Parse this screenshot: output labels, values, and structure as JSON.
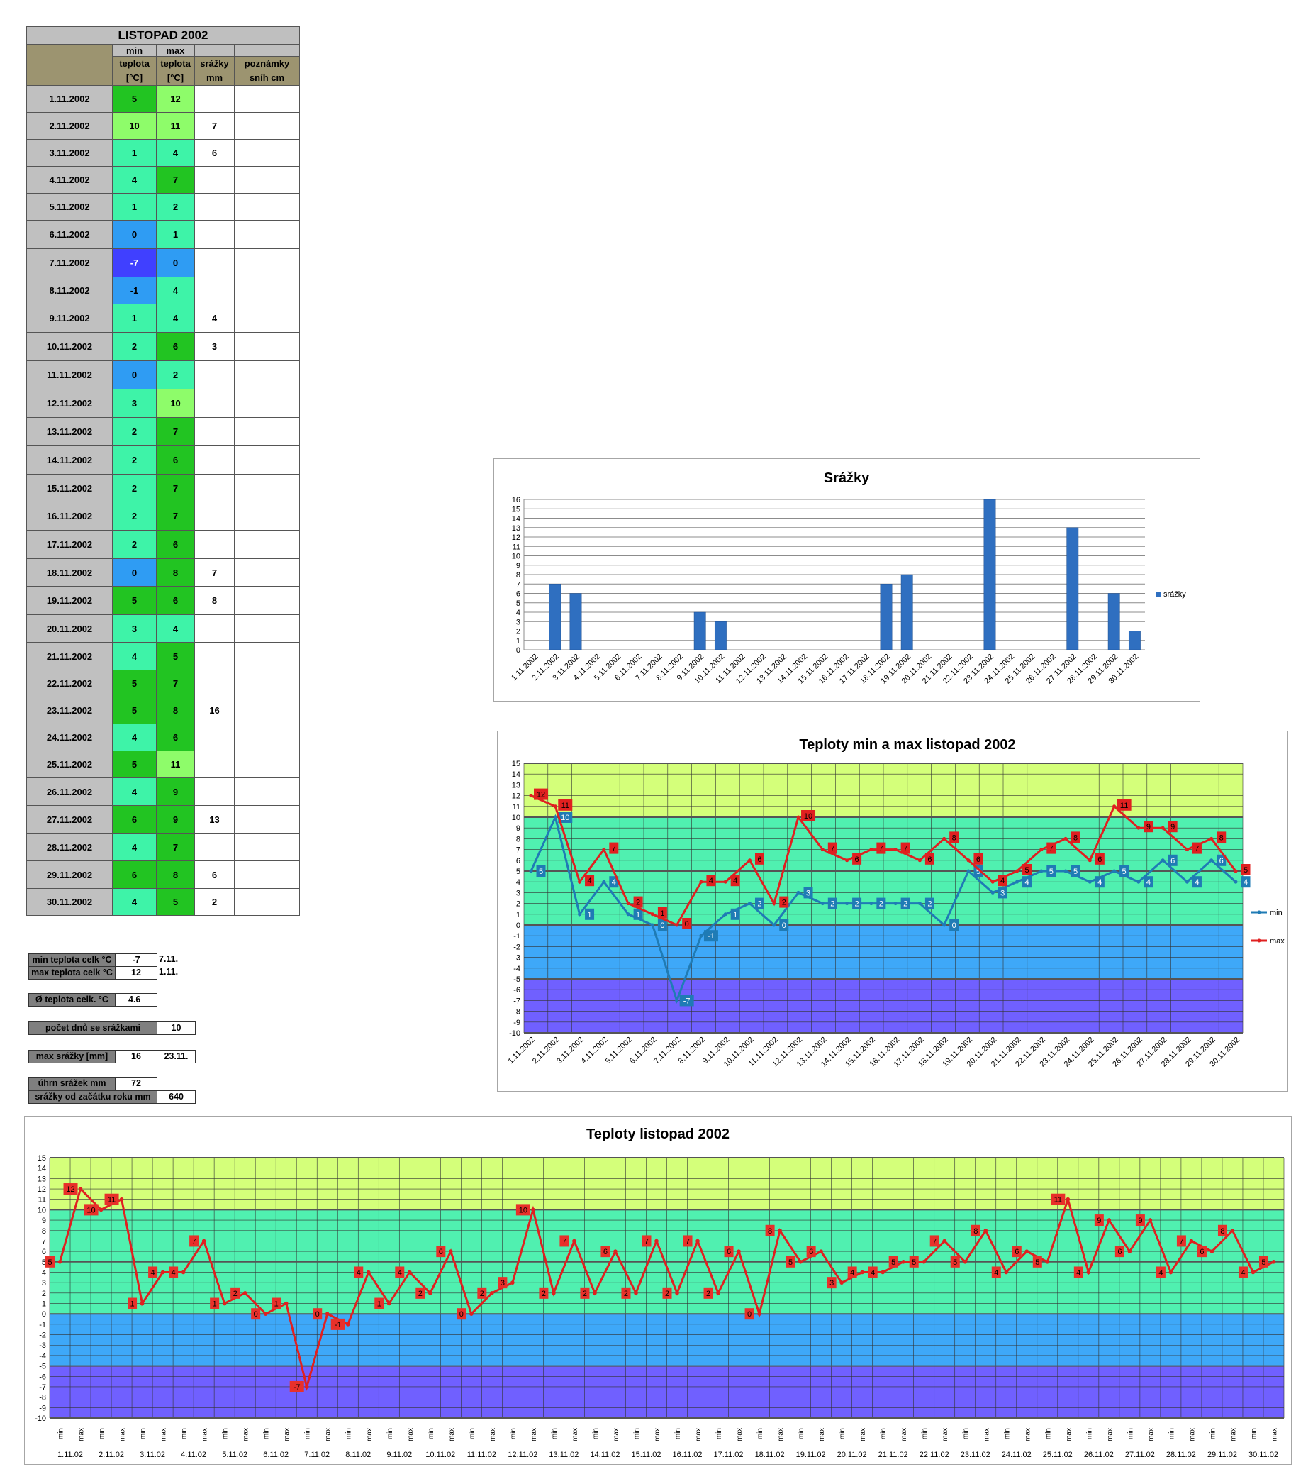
{
  "table": {
    "title": "LISTOPAD 2002",
    "headers": {
      "min_top": "min",
      "max_top": "max",
      "min_l1": "teplota",
      "min_l2": "[°C]",
      "max_l1": "teplota",
      "max_l2": "[°C]",
      "rain_l1": "srážky",
      "rain_l2": "mm",
      "notes_l1": "poznámky",
      "notes_l2": "sníh cm"
    },
    "rows": [
      {
        "date": "1.11.2002",
        "min": "5",
        "max": "12",
        "rain": "",
        "note": ""
      },
      {
        "date": "2.11.2002",
        "min": "10",
        "max": "11",
        "rain": "7",
        "note": ""
      },
      {
        "date": "3.11.2002",
        "min": "1",
        "max": "4",
        "rain": "6",
        "note": ""
      },
      {
        "date": "4.11.2002",
        "min": "4",
        "max": "7",
        "rain": "",
        "note": ""
      },
      {
        "date": "5.11.2002",
        "min": "1",
        "max": "2",
        "rain": "",
        "note": ""
      },
      {
        "date": "6.11.2002",
        "min": "0",
        "max": "1",
        "rain": "",
        "note": ""
      },
      {
        "date": "7.11.2002",
        "min": "-7",
        "max": "0",
        "rain": "",
        "note": ""
      },
      {
        "date": "8.11.2002",
        "min": "-1",
        "max": "4",
        "rain": "",
        "note": ""
      },
      {
        "date": "9.11.2002",
        "min": "1",
        "max": "4",
        "rain": "4",
        "note": ""
      },
      {
        "date": "10.11.2002",
        "min": "2",
        "max": "6",
        "rain": "3",
        "note": ""
      },
      {
        "date": "11.11.2002",
        "min": "0",
        "max": "2",
        "rain": "",
        "note": ""
      },
      {
        "date": "12.11.2002",
        "min": "3",
        "max": "10",
        "rain": "",
        "note": ""
      },
      {
        "date": "13.11.2002",
        "min": "2",
        "max": "7",
        "rain": "",
        "note": ""
      },
      {
        "date": "14.11.2002",
        "min": "2",
        "max": "6",
        "rain": "",
        "note": ""
      },
      {
        "date": "15.11.2002",
        "min": "2",
        "max": "7",
        "rain": "",
        "note": ""
      },
      {
        "date": "16.11.2002",
        "min": "2",
        "max": "7",
        "rain": "",
        "note": ""
      },
      {
        "date": "17.11.2002",
        "min": "2",
        "max": "6",
        "rain": "",
        "note": ""
      },
      {
        "date": "18.11.2002",
        "min": "0",
        "max": "8",
        "rain": "7",
        "note": ""
      },
      {
        "date": "19.11.2002",
        "min": "5",
        "max": "6",
        "rain": "8",
        "note": ""
      },
      {
        "date": "20.11.2002",
        "min": "3",
        "max": "4",
        "rain": "",
        "note": ""
      },
      {
        "date": "21.11.2002",
        "min": "4",
        "max": "5",
        "rain": "",
        "note": ""
      },
      {
        "date": "22.11.2002",
        "min": "5",
        "max": "7",
        "rain": "",
        "note": ""
      },
      {
        "date": "23.11.2002",
        "min": "5",
        "max": "8",
        "rain": "16",
        "note": ""
      },
      {
        "date": "24.11.2002",
        "min": "4",
        "max": "6",
        "rain": "",
        "note": ""
      },
      {
        "date": "25.11.2002",
        "min": "5",
        "max": "11",
        "rain": "",
        "note": ""
      },
      {
        "date": "26.11.2002",
        "min": "4",
        "max": "9",
        "rain": "",
        "note": ""
      },
      {
        "date": "27.11.2002",
        "min": "6",
        "max": "9",
        "rain": "13",
        "note": ""
      },
      {
        "date": "28.11.2002",
        "min": "4",
        "max": "7",
        "rain": "",
        "note": ""
      },
      {
        "date": "29.11.2002",
        "min": "6",
        "max": "8",
        "rain": "6",
        "note": ""
      },
      {
        "date": "30.11.2002",
        "min": "4",
        "max": "5",
        "rain": "2",
        "note": ""
      }
    ]
  },
  "summary": {
    "min_label": "min teplota celk °C",
    "min_value": "-7",
    "min_date": "7.11.",
    "max_label": "max teplota celk °C",
    "max_value": "12",
    "max_date": "1.11.",
    "avg_label": "Ø teplota celk. °C",
    "avg_value": "4.6",
    "rain_days_label": "počet dnů se srážkami",
    "rain_days_value": "10",
    "rain_max_label": "max srážky [mm]",
    "rain_max_value": "16",
    "rain_max_date": "23.11.",
    "rain_total_label": "úhrn srážek  mm",
    "rain_total_value": "72",
    "rain_year_label": "srážky od začátku roku mm",
    "rain_year_value": "640"
  },
  "colors": {
    "header_gray": "#bfbfbf",
    "date_gray": "#c0c0c0",
    "corner_khaki": "#9c9470",
    "notes_khaki": "#9c9470",
    "band_top": "#d4ff7a",
    "band_mid": "#50f0b0",
    "band_zero": "#3ea8f8",
    "band_neg": "#7060ff",
    "min_line": "#1f7bb5",
    "max_line": "#e02020",
    "bar": "#2f6fc0"
  },
  "chart_data": [
    {
      "type": "bar",
      "title": "Srážky",
      "categories": [
        "1.11.2002",
        "2.11.2002",
        "3.11.2002",
        "4.11.2002",
        "5.11.2002",
        "6.11.2002",
        "7.11.2002",
        "8.11.2002",
        "9.11.2002",
        "10.11.2002",
        "11.11.2002",
        "12.11.2002",
        "13.11.2002",
        "14.11.2002",
        "15.11.2002",
        "16.11.2002",
        "17.11.2002",
        "18.11.2002",
        "19.11.2002",
        "20.11.2002",
        "21.11.2002",
        "22.11.2002",
        "23.11.2002",
        "24.11.2002",
        "25.11.2002",
        "26.11.2002",
        "27.11.2002",
        "28.11.2002",
        "29.11.2002",
        "30.11.2002"
      ],
      "series": [
        {
          "name": "srážky",
          "values": [
            0,
            7,
            6,
            0,
            0,
            0,
            0,
            0,
            4,
            3,
            0,
            0,
            0,
            0,
            0,
            0,
            0,
            7,
            8,
            0,
            0,
            0,
            16,
            0,
            0,
            0,
            13,
            0,
            6,
            2
          ]
        }
      ],
      "ylim": [
        0,
        16
      ],
      "yticks": [
        0,
        1,
        2,
        3,
        4,
        5,
        6,
        7,
        8,
        9,
        10,
        11,
        12,
        13,
        14,
        15,
        16
      ],
      "legend": "right"
    },
    {
      "type": "line",
      "title": "Teploty min a max listopad 2002",
      "categories": [
        "1.11.2002",
        "2.11.2002",
        "3.11.2002",
        "4.11.2002",
        "5.11.2002",
        "6.11.2002",
        "7.11.2002",
        "8.11.2002",
        "9.11.2002",
        "10.11.2002",
        "11.11.2002",
        "12.11.2002",
        "13.11.2002",
        "14.11.2002",
        "15.11.2002",
        "16.11.2002",
        "17.11.2002",
        "18.11.2002",
        "19.11.2002",
        "20.11.2002",
        "21.11.2002",
        "22.11.2002",
        "23.11.2002",
        "24.11.2002",
        "25.11.2002",
        "26.11.2002",
        "27.11.2002",
        "28.11.2002",
        "29.11.2002",
        "30.11.2002"
      ],
      "series": [
        {
          "name": "min",
          "values": [
            5,
            10,
            1,
            4,
            1,
            0,
            -7,
            -1,
            1,
            2,
            0,
            3,
            2,
            2,
            2,
            2,
            2,
            0,
            5,
            3,
            4,
            5,
            5,
            4,
            5,
            4,
            6,
            4,
            6,
            4
          ]
        },
        {
          "name": "max",
          "values": [
            12,
            11,
            4,
            7,
            2,
            1,
            0,
            4,
            4,
            6,
            2,
            10,
            7,
            6,
            7,
            7,
            6,
            8,
            6,
            4,
            5,
            7,
            8,
            6,
            11,
            9,
            9,
            7,
            8,
            5
          ]
        }
      ],
      "ylim": [
        -10,
        15
      ],
      "yticks": [
        -10,
        -9,
        -8,
        -7,
        -6,
        -5,
        -4,
        -3,
        -2,
        -1,
        0,
        1,
        2,
        3,
        4,
        5,
        6,
        7,
        8,
        9,
        10,
        11,
        12,
        13,
        14,
        15
      ],
      "legend": "right"
    },
    {
      "type": "line",
      "title": "Teploty listopad 2002",
      "x_sub_labels": [
        "min",
        "max"
      ],
      "x_group_labels": [
        "1.11.02",
        "2.11.02",
        "3.11.02",
        "4.11.02",
        "5.11.02",
        "6.11.02",
        "7.11.02",
        "8.11.02",
        "9.11.02",
        "10.11.02",
        "11.11.02",
        "12.11.02",
        "13.11.02",
        "14.11.02",
        "15.11.02",
        "16.11.02",
        "17.11.02",
        "18.11.02",
        "19.11.02",
        "20.11.02",
        "21.11.02",
        "22.11.02",
        "23.11.02",
        "24.11.02",
        "25.11.02",
        "26.11.02",
        "27.11.02",
        "28.11.02",
        "29.11.02",
        "30.11.02"
      ],
      "series": [
        {
          "values": [
            5,
            12,
            10,
            11,
            1,
            4,
            4,
            7,
            1,
            2,
            0,
            1,
            -7,
            0,
            -1,
            4,
            1,
            4,
            2,
            6,
            0,
            2,
            3,
            10,
            2,
            7,
            2,
            6,
            2,
            7,
            2,
            7,
            2,
            6,
            0,
            8,
            5,
            6,
            3,
            4,
            4,
            5,
            5,
            7,
            5,
            8,
            4,
            6,
            5,
            11,
            4,
            9,
            6,
            9,
            4,
            7,
            6,
            8,
            4,
            5
          ]
        }
      ],
      "ylim": [
        -10,
        15
      ],
      "yticks": [
        -10,
        -9,
        -8,
        -7,
        -6,
        -5,
        -4,
        -3,
        -2,
        -1,
        0,
        1,
        2,
        3,
        4,
        5,
        6,
        7,
        8,
        9,
        10,
        11,
        12,
        13,
        14,
        15
      ]
    }
  ]
}
